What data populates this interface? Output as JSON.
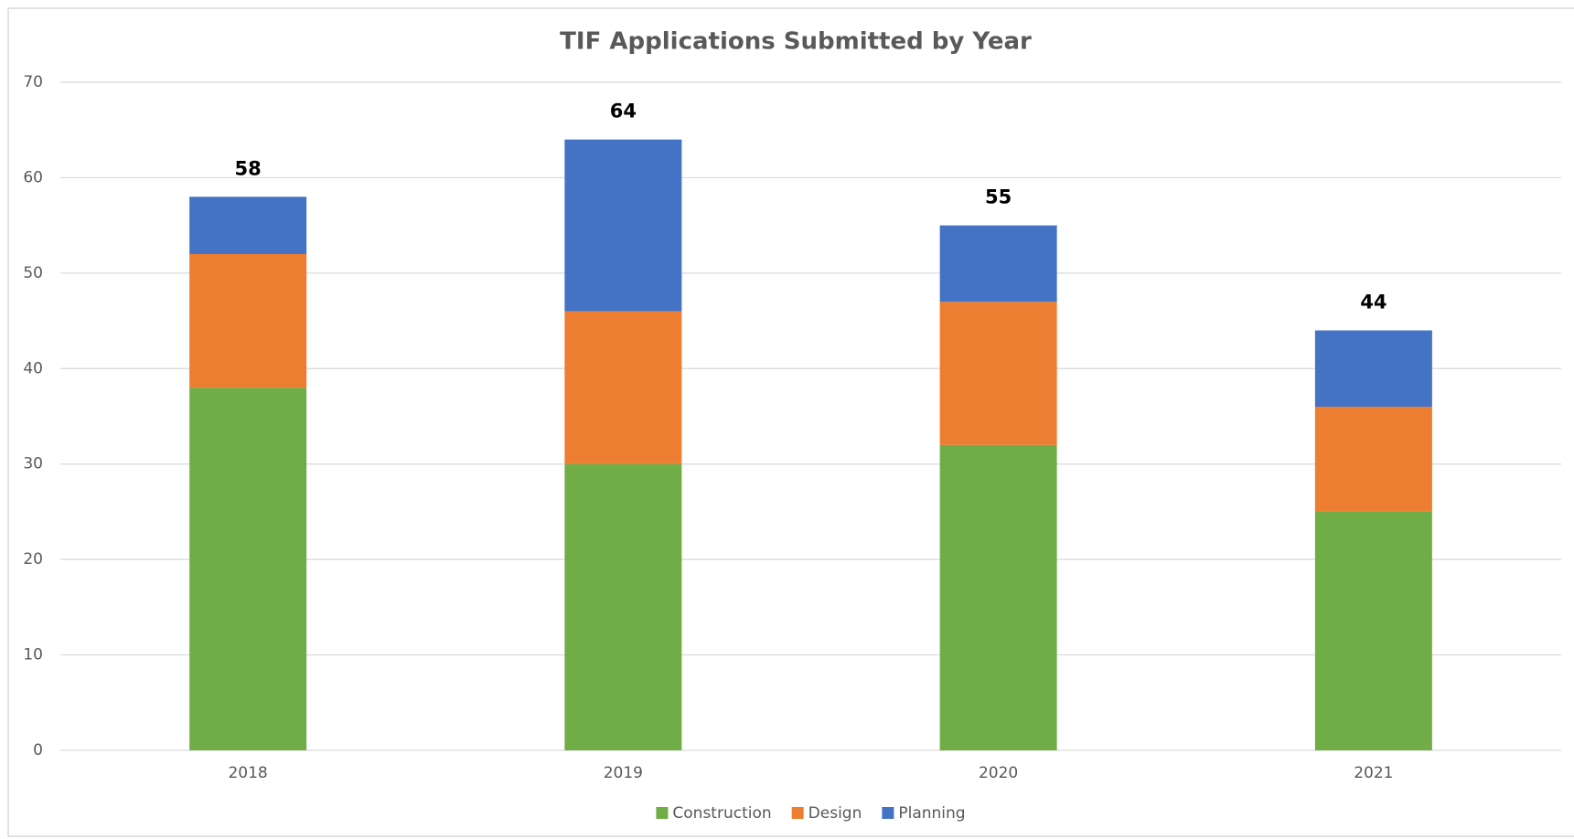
{
  "chart_data": {
    "type": "stacked_bar",
    "title": "TIF Applications Submitted by Year",
    "categories": [
      "2018",
      "2019",
      "2020",
      "2021"
    ],
    "series": [
      {
        "name": "Construction",
        "color": "#70ad47",
        "values": [
          38,
          30,
          32,
          25
        ]
      },
      {
        "name": "Design",
        "color": "#ed7d31",
        "values": [
          14,
          16,
          15,
          11
        ]
      },
      {
        "name": "Planning",
        "color": "#4472c4",
        "values": [
          6,
          18,
          8,
          8
        ]
      }
    ],
    "totals": [
      58,
      64,
      55,
      44
    ],
    "ylim": [
      0,
      70
    ],
    "yticks": [
      0,
      10,
      20,
      30,
      40,
      50,
      60,
      70
    ],
    "grid": true,
    "legend": "bottom"
  }
}
